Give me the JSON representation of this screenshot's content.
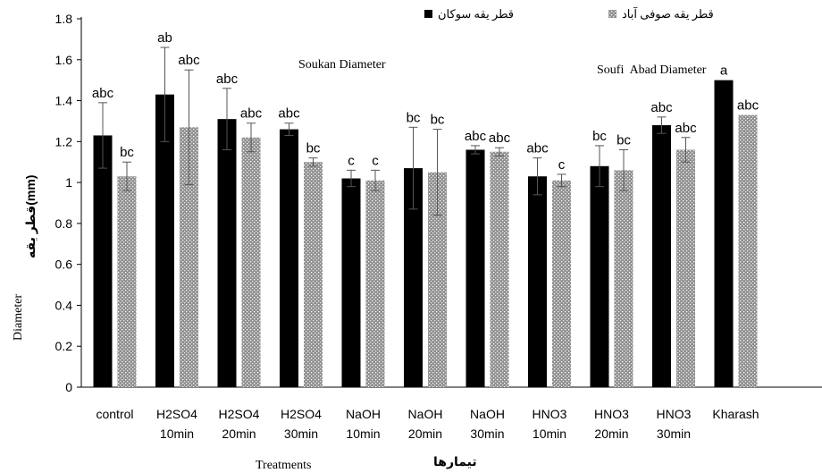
{
  "chart_data": {
    "type": "bar",
    "categories": [
      [
        "control"
      ],
      [
        "H2SO4",
        "10min"
      ],
      [
        "H2SO4",
        "20min"
      ],
      [
        "H2SO4",
        "30min"
      ],
      [
        "NaOH",
        "10min"
      ],
      [
        "NaOH",
        "20min"
      ],
      [
        "NaOH",
        "30min"
      ],
      [
        "HNO3",
        "10min"
      ],
      [
        "HNO3",
        "20min"
      ],
      [
        "HNO3",
        "30min"
      ],
      [
        "Kharash"
      ]
    ],
    "series": [
      {
        "name": "قطر یقه سوکان",
        "name_en": "Soukan Diameter",
        "color": "#000000",
        "values": [
          1.23,
          1.43,
          1.31,
          1.26,
          1.02,
          1.07,
          1.16,
          1.03,
          1.08,
          1.28,
          1.5
        ],
        "errors": [
          0.16,
          0.23,
          0.15,
          0.03,
          0.04,
          0.2,
          0.02,
          0.09,
          0.1,
          0.04,
          null
        ],
        "letters": [
          "abc",
          "ab",
          "abc",
          "abc",
          "c",
          "bc",
          "abc",
          "abc",
          "bc",
          "abc",
          "a"
        ]
      },
      {
        "name": "قطر یقه صوفی آباد",
        "name_en": "Soufi  Abad Diameter",
        "color": "#8c8c8c",
        "values": [
          1.03,
          1.27,
          1.22,
          1.1,
          1.01,
          1.05,
          1.15,
          1.01,
          1.06,
          1.16,
          1.33
        ],
        "errors": [
          0.07,
          0.28,
          0.07,
          0.02,
          0.05,
          0.21,
          0.02,
          0.03,
          0.1,
          0.06,
          null
        ],
        "letters": [
          "bc",
          "abc",
          "abc",
          "bc",
          "c",
          "bc",
          "abc",
          "c",
          "bc",
          "abc",
          "abc"
        ]
      }
    ],
    "ylim": [
      0,
      1.8
    ],
    "yticks": [
      "0",
      "0.2",
      "0.4",
      "0.6",
      "0.8",
      "1",
      "1.2",
      "1.4",
      "1.6",
      "1.8"
    ],
    "xlabel": "Treatments",
    "xlabel_fa": "تیمارها",
    "ylabel": "Diameter",
    "ylabel_fa": "قطر یقه(mm)",
    "legend_placement": "top",
    "grid": false
  }
}
